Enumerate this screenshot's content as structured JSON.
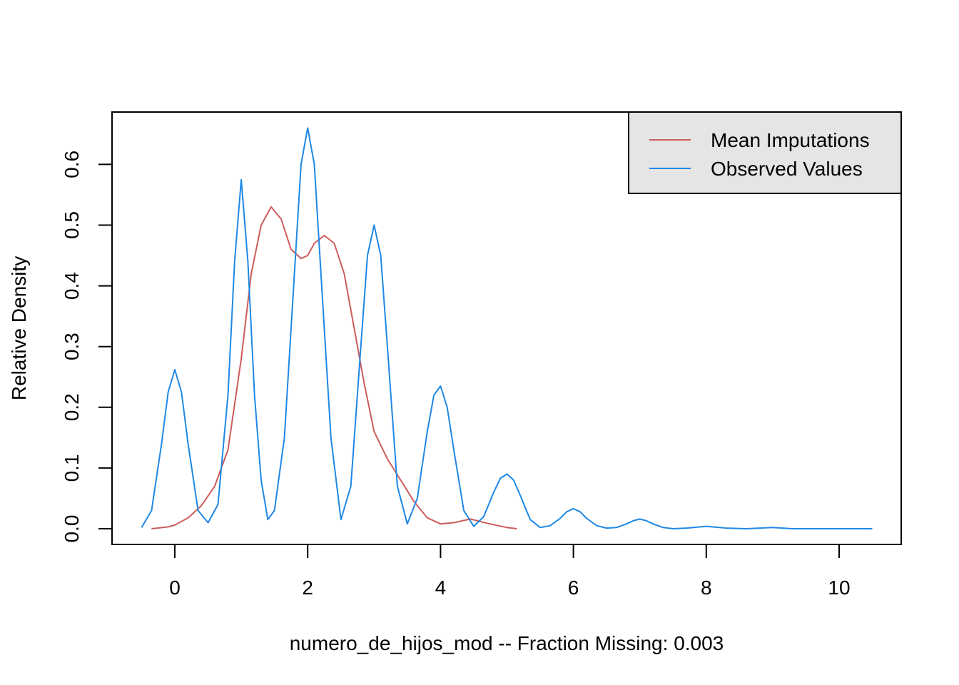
{
  "chart_data": {
    "type": "line",
    "xlabel": "numero_de_hijos_mod   --  Fraction Missing: 0.003",
    "ylabel": "Relative Density",
    "xlim": [
      -0.5,
      10.5
    ],
    "ylim": [
      0,
      0.66
    ],
    "x_ticks": [
      "0",
      "2",
      "4",
      "6",
      "8",
      "10"
    ],
    "y_ticks": [
      "0.0",
      "0.1",
      "0.2",
      "0.3",
      "0.4",
      "0.5",
      "0.6"
    ],
    "legend_position": "top-right",
    "series": [
      {
        "name": "Mean Imputations",
        "color": "#cd5c5c",
        "points": [
          [
            -0.35,
            0.0
          ],
          [
            -0.1,
            0.003
          ],
          [
            0.0,
            0.006
          ],
          [
            0.2,
            0.018
          ],
          [
            0.4,
            0.038
          ],
          [
            0.6,
            0.07
          ],
          [
            0.8,
            0.13
          ],
          [
            1.0,
            0.28
          ],
          [
            1.15,
            0.42
          ],
          [
            1.3,
            0.5
          ],
          [
            1.45,
            0.53
          ],
          [
            1.6,
            0.51
          ],
          [
            1.75,
            0.46
          ],
          [
            1.9,
            0.445
          ],
          [
            2.0,
            0.45
          ],
          [
            2.1,
            0.47
          ],
          [
            2.25,
            0.483
          ],
          [
            2.4,
            0.47
          ],
          [
            2.55,
            0.42
          ],
          [
            2.7,
            0.33
          ],
          [
            2.85,
            0.24
          ],
          [
            3.0,
            0.16
          ],
          [
            3.2,
            0.115
          ],
          [
            3.4,
            0.08
          ],
          [
            3.6,
            0.045
          ],
          [
            3.8,
            0.018
          ],
          [
            4.0,
            0.008
          ],
          [
            4.2,
            0.01
          ],
          [
            4.45,
            0.016
          ],
          [
            4.7,
            0.009
          ],
          [
            5.0,
            0.002
          ],
          [
            5.15,
            0.0
          ]
        ]
      },
      {
        "name": "Observed Values",
        "color": "#1e88e5",
        "points": [
          [
            -0.5,
            0.002
          ],
          [
            -0.35,
            0.03
          ],
          [
            -0.2,
            0.14
          ],
          [
            -0.1,
            0.225
          ],
          [
            0.0,
            0.262
          ],
          [
            0.1,
            0.225
          ],
          [
            0.2,
            0.14
          ],
          [
            0.35,
            0.03
          ],
          [
            0.5,
            0.01
          ],
          [
            0.65,
            0.04
          ],
          [
            0.8,
            0.22
          ],
          [
            0.9,
            0.44
          ],
          [
            1.0,
            0.575
          ],
          [
            1.1,
            0.44
          ],
          [
            1.2,
            0.22
          ],
          [
            1.3,
            0.08
          ],
          [
            1.4,
            0.015
          ],
          [
            1.5,
            0.03
          ],
          [
            1.65,
            0.15
          ],
          [
            1.8,
            0.42
          ],
          [
            1.9,
            0.6
          ],
          [
            2.0,
            0.66
          ],
          [
            2.1,
            0.6
          ],
          [
            2.2,
            0.42
          ],
          [
            2.35,
            0.15
          ],
          [
            2.5,
            0.015
          ],
          [
            2.65,
            0.07
          ],
          [
            2.8,
            0.3
          ],
          [
            2.9,
            0.45
          ],
          [
            3.0,
            0.5
          ],
          [
            3.1,
            0.45
          ],
          [
            3.2,
            0.3
          ],
          [
            3.35,
            0.07
          ],
          [
            3.5,
            0.008
          ],
          [
            3.65,
            0.05
          ],
          [
            3.8,
            0.16
          ],
          [
            3.9,
            0.22
          ],
          [
            4.0,
            0.235
          ],
          [
            4.1,
            0.2
          ],
          [
            4.2,
            0.13
          ],
          [
            4.35,
            0.03
          ],
          [
            4.5,
            0.004
          ],
          [
            4.65,
            0.02
          ],
          [
            4.8,
            0.06
          ],
          [
            4.9,
            0.083
          ],
          [
            5.0,
            0.09
          ],
          [
            5.1,
            0.08
          ],
          [
            5.2,
            0.055
          ],
          [
            5.35,
            0.015
          ],
          [
            5.5,
            0.002
          ],
          [
            5.65,
            0.005
          ],
          [
            5.8,
            0.017
          ],
          [
            5.9,
            0.028
          ],
          [
            6.0,
            0.033
          ],
          [
            6.1,
            0.028
          ],
          [
            6.2,
            0.017
          ],
          [
            6.35,
            0.005
          ],
          [
            6.5,
            0.001
          ],
          [
            6.65,
            0.002
          ],
          [
            6.8,
            0.008
          ],
          [
            6.9,
            0.013
          ],
          [
            7.0,
            0.016
          ],
          [
            7.1,
            0.013
          ],
          [
            7.2,
            0.008
          ],
          [
            7.35,
            0.002
          ],
          [
            7.5,
            0.0
          ],
          [
            7.7,
            0.001
          ],
          [
            8.0,
            0.004
          ],
          [
            8.3,
            0.001
          ],
          [
            8.6,
            0.0
          ],
          [
            9.0,
            0.002
          ],
          [
            9.3,
            0.0
          ],
          [
            10.0,
            0.0
          ],
          [
            10.5,
            0.0
          ]
        ]
      }
    ]
  }
}
